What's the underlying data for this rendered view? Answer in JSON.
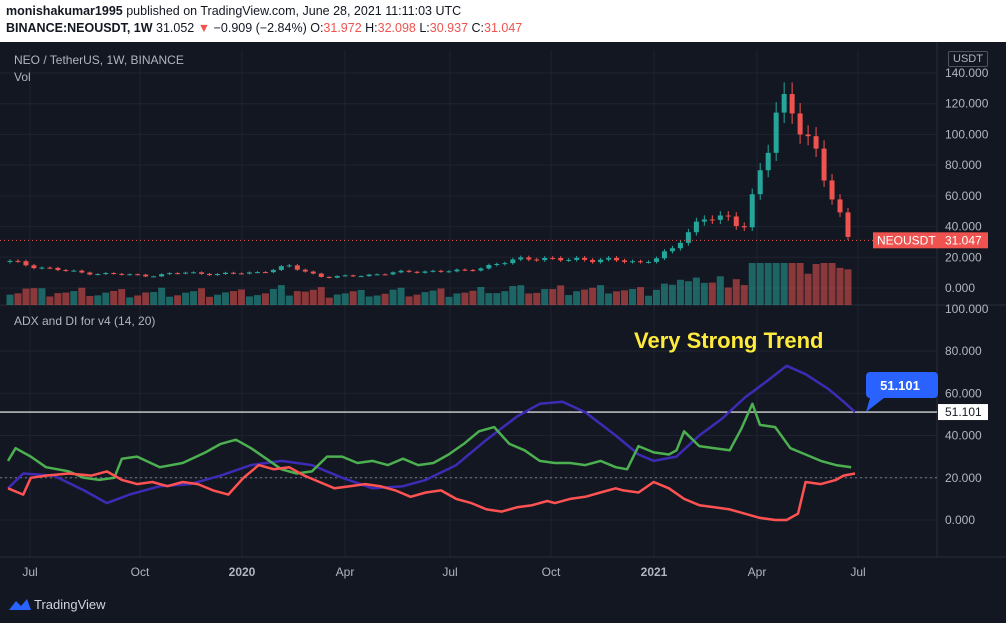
{
  "header": {
    "publisher": "monishakumar1995",
    "published_text": "published on TradingView.com, June 28, 2021 11:11:03 UTC",
    "symbol_full": "BINANCE:NEOUSDT, 1W",
    "last": "31.052",
    "change": "−0.909 (−2.84%)",
    "o_label": "O:",
    "o_value": "31.972",
    "h_label": "H:",
    "h_value": "32.098",
    "l_label": "L:",
    "l_value": "30.937",
    "c_label": "C:",
    "c_value": "31.047"
  },
  "main_pane": {
    "title": "NEO / TetherUS, 1W, BINANCE",
    "vol_label": "Vol",
    "currency": "USDT",
    "price_tag_symbol": "NEOUSDT",
    "price_tag_value": "31.047"
  },
  "indicator_pane": {
    "title": "ADX and DI for v4 (14, 20)",
    "annotation": "Very Strong Trend",
    "callout_value": "51.101",
    "line_value_tag": "51.101"
  },
  "footer": {
    "brand": "TradingView"
  },
  "colors": {
    "up": "#26a69a",
    "down": "#ef5350",
    "adx": "#3e2bb5",
    "di_plus": "#4caf50",
    "di_minus": "#ff5252",
    "bg": "#131722"
  },
  "chart_data": [
    {
      "type": "candlestick",
      "title": "NEO / TetherUS, 1W, BINANCE",
      "x_ticks": [
        "Jul",
        "Oct",
        "2020",
        "Apr",
        "Jul",
        "Oct",
        "2021",
        "Apr",
        "Jul"
      ],
      "y_ticks": [
        "140.000",
        "120.000",
        "100.000",
        "80.000",
        "60.000",
        "40.000",
        "20.000",
        "0.000"
      ],
      "ylim": [
        -8,
        148
      ],
      "close_points": [
        {
          "x": "2019-06",
          "close": 17
        },
        {
          "x": "2019-07",
          "close": 13
        },
        {
          "x": "2019-08",
          "close": 10
        },
        {
          "x": "2019-09",
          "close": 9
        },
        {
          "x": "2019-10",
          "close": 8
        },
        {
          "x": "2019-11",
          "close": 10
        },
        {
          "x": "2019-12",
          "close": 9
        },
        {
          "x": "2020-01",
          "close": 10
        },
        {
          "x": "2020-02",
          "close": 14
        },
        {
          "x": "2020-03",
          "close": 7
        },
        {
          "x": "2020-04",
          "close": 8
        },
        {
          "x": "2020-05",
          "close": 10
        },
        {
          "x": "2020-06",
          "close": 11
        },
        {
          "x": "2020-07",
          "close": 11
        },
        {
          "x": "2020-08",
          "close": 16
        },
        {
          "x": "2020-09",
          "close": 20
        },
        {
          "x": "2020-10",
          "close": 18
        },
        {
          "x": "2020-11",
          "close": 19
        },
        {
          "x": "2020-12",
          "close": 16
        },
        {
          "x": "2021-01",
          "close": 25
        },
        {
          "x": "2021-02",
          "close": 50
        },
        {
          "x": "2021-03",
          "close": 38
        },
        {
          "x": "2021-04",
          "close": 120
        },
        {
          "x": "2021-05",
          "close": 95
        },
        {
          "x": "2021-06",
          "close": 31.047
        }
      ],
      "volume": "shown as bars under candles"
    },
    {
      "type": "line",
      "title": "ADX and DI for v4 (14, 20)",
      "y_ticks": [
        "100.000",
        "80.000",
        "60.000",
        "40.000",
        "20.000",
        "0.000"
      ],
      "ylim": [
        -20,
        100
      ],
      "threshold_line": 20,
      "horizontal_level": 51.101,
      "series": [
        {
          "key": "adx",
          "color": "#3e2bb5",
          "points": [
            [
              0,
              15
            ],
            [
              4,
              22
            ],
            [
              12,
              21
            ],
            [
              20,
              14
            ],
            [
              26,
              8
            ],
            [
              32,
              12
            ],
            [
              40,
              16
            ],
            [
              48,
              17
            ],
            [
              56,
              21
            ],
            [
              64,
              26
            ],
            [
              72,
              28
            ],
            [
              80,
              26
            ],
            [
              88,
              20
            ],
            [
              96,
              15
            ],
            [
              104,
              16
            ],
            [
              110,
              19
            ],
            [
              118,
              26
            ],
            [
              126,
              38
            ],
            [
              134,
              49
            ],
            [
              140,
              55
            ],
            [
              146,
              56
            ],
            [
              152,
              51
            ],
            [
              160,
              40
            ],
            [
              166,
              31
            ],
            [
              170,
              28
            ],
            [
              176,
              30
            ],
            [
              182,
              40
            ],
            [
              188,
              48
            ],
            [
              194,
              58
            ],
            [
              200,
              66
            ],
            [
              205,
              73
            ],
            [
              210,
              69
            ],
            [
              216,
              62
            ],
            [
              220,
              56
            ],
            [
              223,
              51.1
            ]
          ]
        },
        {
          "key": "di_plus",
          "color": "#4caf50",
          "points": [
            [
              0,
              28
            ],
            [
              2,
              34
            ],
            [
              6,
              30
            ],
            [
              10,
              25
            ],
            [
              16,
              23
            ],
            [
              20,
              20
            ],
            [
              24,
              19
            ],
            [
              28,
              20
            ],
            [
              30,
              29
            ],
            [
              34,
              30
            ],
            [
              40,
              25
            ],
            [
              46,
              27
            ],
            [
              52,
              32
            ],
            [
              56,
              36
            ],
            [
              60,
              38
            ],
            [
              64,
              34
            ],
            [
              68,
              29
            ],
            [
              72,
              24
            ],
            [
              76,
              22
            ],
            [
              80,
              23
            ],
            [
              84,
              30
            ],
            [
              88,
              30
            ],
            [
              92,
              27
            ],
            [
              96,
              28
            ],
            [
              100,
              26
            ],
            [
              104,
              29
            ],
            [
              108,
              26
            ],
            [
              112,
              27
            ],
            [
              116,
              31
            ],
            [
              120,
              36
            ],
            [
              124,
              42
            ],
            [
              128,
              44
            ],
            [
              132,
              36
            ],
            [
              136,
              33
            ],
            [
              140,
              28
            ],
            [
              144,
              27
            ],
            [
              148,
              27
            ],
            [
              152,
              26
            ],
            [
              156,
              28
            ],
            [
              160,
              25
            ],
            [
              163,
              24
            ],
            [
              166,
              35
            ],
            [
              170,
              32
            ],
            [
              174,
              31
            ],
            [
              176,
              33
            ],
            [
              178,
              42
            ],
            [
              182,
              35
            ],
            [
              186,
              34
            ],
            [
              190,
              33
            ],
            [
              193,
              43
            ],
            [
              196,
              55
            ],
            [
              198,
              45
            ],
            [
              202,
              44
            ],
            [
              206,
              34
            ],
            [
              210,
              31
            ],
            [
              214,
              28
            ],
            [
              218,
              26
            ],
            [
              222,
              25
            ]
          ]
        },
        {
          "key": "di_minus",
          "color": "#ff5252",
          "points": [
            [
              0,
              15
            ],
            [
              4,
              12
            ],
            [
              6,
              20
            ],
            [
              10,
              21
            ],
            [
              16,
              22
            ],
            [
              22,
              21
            ],
            [
              26,
              23
            ],
            [
              30,
              19
            ],
            [
              34,
              17
            ],
            [
              38,
              18
            ],
            [
              42,
              16
            ],
            [
              46,
              18
            ],
            [
              50,
              17
            ],
            [
              54,
              14
            ],
            [
              58,
              12
            ],
            [
              62,
              20
            ],
            [
              66,
              26
            ],
            [
              70,
              24
            ],
            [
              74,
              25
            ],
            [
              78,
              21
            ],
            [
              82,
              18
            ],
            [
              86,
              15
            ],
            [
              90,
              16
            ],
            [
              94,
              17
            ],
            [
              98,
              16
            ],
            [
              102,
              14
            ],
            [
              106,
              11
            ],
            [
              110,
              13
            ],
            [
              114,
              14
            ],
            [
              118,
              10
            ],
            [
              122,
              8
            ],
            [
              126,
              5
            ],
            [
              130,
              4
            ],
            [
              134,
              6
            ],
            [
              138,
              7
            ],
            [
              142,
              9
            ],
            [
              144,
              8
            ],
            [
              148,
              10
            ],
            [
              152,
              11
            ],
            [
              156,
              13
            ],
            [
              160,
              15
            ],
            [
              162,
              14
            ],
            [
              166,
              13
            ],
            [
              170,
              18
            ],
            [
              174,
              15
            ],
            [
              178,
              10
            ],
            [
              182,
              7
            ],
            [
              186,
              6
            ],
            [
              190,
              5
            ],
            [
              194,
              3
            ],
            [
              196,
              2
            ],
            [
              198,
              1
            ],
            [
              202,
              0
            ],
            [
              205,
              0
            ],
            [
              208,
              3
            ],
            [
              210,
              18
            ],
            [
              214,
              17
            ],
            [
              218,
              19
            ],
            [
              220,
              21
            ],
            [
              223,
              22
            ]
          ]
        }
      ]
    }
  ]
}
